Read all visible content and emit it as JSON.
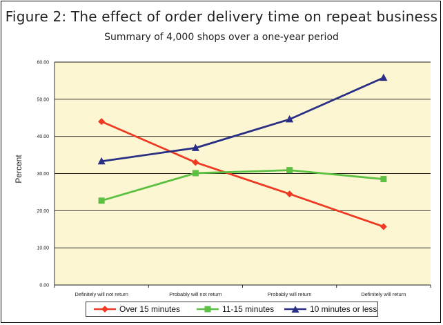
{
  "header": {
    "title": "Figure 2: The effect of order delivery time on repeat business",
    "subtitle": "Summary of 4,000 shops over a one-year period"
  },
  "chart_data": {
    "type": "line",
    "title": "Figure 2: The effect of order delivery time on repeat business",
    "subtitle": "Summary of 4,000 shops over a one-year period",
    "xlabel": "",
    "ylabel": "Percent",
    "ylim": [
      0,
      60
    ],
    "yticks": [
      "0.00",
      "10.00",
      "20.00",
      "30.00",
      "40.00",
      "50.00",
      "60.00"
    ],
    "categories": [
      "Definitely will not return",
      "Probably will not return",
      "Probably will return",
      "Definitely will return"
    ],
    "grid": true,
    "plot_background": "#fcf6d2",
    "legend_position": "bottom",
    "series": [
      {
        "name": "Over 15 minutes",
        "color": "#ee3a23",
        "marker": "diamond",
        "values": [
          44.0,
          33.0,
          24.5,
          15.7
        ]
      },
      {
        "name": "11-15 minutes",
        "color": "#5cc043",
        "marker": "square",
        "values": [
          22.7,
          30.1,
          30.9,
          28.5
        ]
      },
      {
        "name": "10 minutes or less",
        "color": "#2a2f86",
        "marker": "triangle",
        "values": [
          33.3,
          36.9,
          44.6,
          55.8
        ]
      }
    ]
  }
}
